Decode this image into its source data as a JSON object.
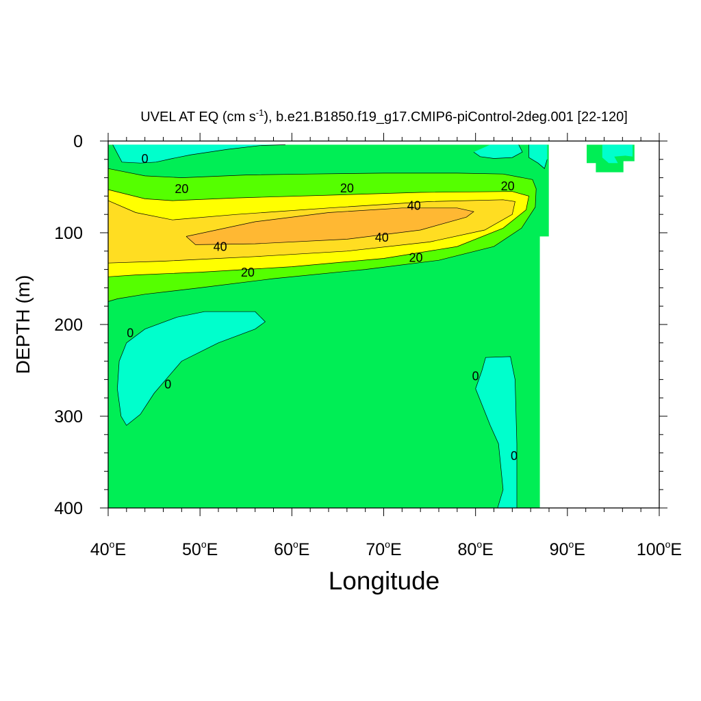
{
  "chart_data": {
    "type": "contour",
    "title_main": "UVEL AT EQ (cm s",
    "title_sup": "-1",
    "title_rest": "), b.e21.B1850.f19_g17.CMIP6-piControl-2deg.001 [22-120]",
    "xlabel": "Longitude",
    "ylabel": "DEPTH (m)",
    "xlim": [
      40,
      100
    ],
    "ylim": [
      0,
      400
    ],
    "x_ticks": [
      40,
      50,
      60,
      70,
      80,
      90,
      100
    ],
    "x_tick_labels": [
      {
        "num": "40",
        "deg": "o",
        "dir": "E"
      },
      {
        "num": "50",
        "deg": "o",
        "dir": "E"
      },
      {
        "num": "60",
        "deg": "o",
        "dir": "E"
      },
      {
        "num": "70",
        "deg": "o",
        "dir": "E"
      },
      {
        "num": "80",
        "deg": "o",
        "dir": "E"
      },
      {
        "num": "90",
        "deg": "o",
        "dir": "E"
      },
      {
        "num": "100",
        "deg": "o",
        "dir": "E"
      }
    ],
    "y_ticks": [
      0,
      100,
      200,
      300,
      400
    ],
    "y_tick_labels": [
      "0",
      "100",
      "200",
      "300",
      "400"
    ],
    "colors": {
      "cyan": "#00ffcc",
      "green": "#00ee55",
      "lime": "#55ff00",
      "yellow": "#ffff00",
      "gold": "#ffdd22",
      "orange": "#ffb833"
    },
    "contour_labels": [
      {
        "text": "0",
        "lon": 44.0,
        "depth": 19
      },
      {
        "text": "20",
        "lon": 48.0,
        "depth": 52
      },
      {
        "text": "20",
        "lon": 66.0,
        "depth": 51
      },
      {
        "text": "20",
        "lon": 83.5,
        "depth": 49
      },
      {
        "text": "40",
        "lon": 73.3,
        "depth": 70
      },
      {
        "text": "40",
        "lon": 69.8,
        "depth": 105
      },
      {
        "text": "40",
        "lon": 52.2,
        "depth": 115
      },
      {
        "text": "20",
        "lon": 73.5,
        "depth": 127
      },
      {
        "text": "20",
        "lon": 55.2,
        "depth": 143
      },
      {
        "text": "0",
        "lon": 42.4,
        "depth": 209
      },
      {
        "text": "0",
        "lon": 46.5,
        "depth": 265
      },
      {
        "text": "0",
        "lon": 80.0,
        "depth": 256
      },
      {
        "text": "0",
        "lon": 84.2,
        "depth": 343
      }
    ],
    "regions": [
      {
        "fill": "green",
        "pts": [
          [
            40,
            4
          ],
          [
            87.98,
            4
          ],
          [
            87.98,
            104
          ],
          [
            87,
            104
          ],
          [
            87,
            400
          ],
          [
            40,
            400
          ]
        ]
      },
      {
        "fill": "green",
        "pts": [
          [
            92.1,
            4
          ],
          [
            97.3,
            4
          ],
          [
            97.3,
            22
          ],
          [
            96.1,
            22
          ],
          [
            96.1,
            34
          ],
          [
            93.1,
            34
          ],
          [
            93.1,
            24
          ],
          [
            92.1,
            24
          ]
        ]
      },
      {
        "fill": "cyan",
        "pts": [
          [
            40.5,
            4
          ],
          [
            59.3,
            4
          ],
          [
            56.5,
            5
          ],
          [
            53,
            9
          ],
          [
            49,
            15
          ],
          [
            47,
            19
          ],
          [
            45.2,
            23
          ],
          [
            43.5,
            24
          ],
          [
            41.5,
            23
          ]
        ]
      },
      {
        "fill": "cyan",
        "pts": [
          [
            81.6,
            4
          ],
          [
            84.7,
            4
          ],
          [
            85.1,
            12
          ],
          [
            84,
            18
          ],
          [
            82,
            19
          ],
          [
            80.5,
            17
          ],
          [
            79.8,
            12
          ]
        ]
      },
      {
        "fill": "cyan",
        "pts": [
          [
            85.8,
            4
          ],
          [
            87.8,
            4
          ],
          [
            87.8,
            20
          ],
          [
            87.5,
            30
          ],
          [
            86.8,
            24
          ],
          [
            85.8,
            18
          ]
        ]
      },
      {
        "fill": "cyan",
        "pts": [
          [
            93.8,
            4
          ],
          [
            97.1,
            4
          ],
          [
            97.1,
            17
          ],
          [
            96.3,
            16
          ],
          [
            95.1,
            17
          ],
          [
            95.5,
            24
          ],
          [
            94.5,
            24
          ],
          [
            93.8,
            18
          ]
        ]
      },
      {
        "fill": "cyan",
        "pts": [
          [
            50.5,
            186
          ],
          [
            56,
            186
          ],
          [
            57.1,
            197
          ],
          [
            56,
            205
          ],
          [
            52,
            220
          ],
          [
            48,
            240
          ],
          [
            45,
            275
          ],
          [
            43.5,
            298
          ],
          [
            42,
            310
          ],
          [
            41.4,
            300
          ],
          [
            41,
            270
          ],
          [
            41.2,
            240
          ],
          [
            42,
            220
          ],
          [
            44,
            205
          ],
          [
            47.5,
            192
          ]
        ]
      },
      {
        "fill": "cyan",
        "pts": [
          [
            81.1,
            236
          ],
          [
            83.8,
            235
          ],
          [
            84.3,
            260
          ],
          [
            84.5,
            330
          ],
          [
            84.5,
            400
          ],
          [
            82.4,
            400
          ],
          [
            83,
            380
          ],
          [
            82.5,
            330
          ],
          [
            81.6,
            310
          ],
          [
            80,
            270
          ],
          [
            80.7,
            250
          ]
        ]
      },
      {
        "fill": "lime",
        "pts": [
          [
            40,
            30
          ],
          [
            44,
            38
          ],
          [
            48,
            40
          ],
          [
            55,
            37
          ],
          [
            62,
            36
          ],
          [
            70,
            35
          ],
          [
            78,
            35
          ],
          [
            83,
            36
          ],
          [
            86.2,
            42
          ],
          [
            86.6,
            52
          ],
          [
            86.5,
            72
          ],
          [
            85,
            95
          ],
          [
            82,
            115
          ],
          [
            76,
            130
          ],
          [
            68,
            140
          ],
          [
            58,
            150
          ],
          [
            50,
            160
          ],
          [
            44,
            167
          ],
          [
            41,
            172
          ],
          [
            40,
            175
          ]
        ]
      },
      {
        "fill": "yellow",
        "pts": [
          [
            40,
            53
          ],
          [
            44,
            63
          ],
          [
            47,
            65
          ],
          [
            54,
            62
          ],
          [
            64,
            59
          ],
          [
            74,
            56
          ],
          [
            84,
            55
          ],
          [
            85.8,
            60
          ],
          [
            85.5,
            75
          ],
          [
            83,
            95
          ],
          [
            78,
            115
          ],
          [
            70,
            128
          ],
          [
            60,
            137
          ],
          [
            50,
            143
          ],
          [
            43,
            146
          ],
          [
            40,
            148
          ]
        ]
      },
      {
        "fill": "gold",
        "pts": [
          [
            40,
            65
          ],
          [
            43,
            78
          ],
          [
            47,
            86
          ],
          [
            54,
            80
          ],
          [
            64,
            73
          ],
          [
            75,
            66
          ],
          [
            83,
            64
          ],
          [
            84.3,
            66
          ],
          [
            84,
            80
          ],
          [
            81,
            97
          ],
          [
            75,
            110
          ],
          [
            66,
            120
          ],
          [
            56,
            126
          ],
          [
            46,
            131
          ],
          [
            40,
            133
          ]
        ]
      },
      {
        "fill": "orange",
        "pts": [
          [
            48.5,
            104
          ],
          [
            56,
            88
          ],
          [
            64,
            78
          ],
          [
            72,
            73
          ],
          [
            78,
            73
          ],
          [
            79.8,
            77
          ],
          [
            79,
            83
          ],
          [
            74,
            97
          ],
          [
            66,
            107
          ],
          [
            56,
            112
          ],
          [
            49.5,
            113
          ]
        ]
      }
    ],
    "contour_lines": [
      [
        [
          40,
          30
        ],
        [
          44,
          38
        ],
        [
          48,
          40
        ],
        [
          55,
          37
        ],
        [
          62,
          36
        ],
        [
          70,
          35
        ],
        [
          78,
          35
        ],
        [
          83,
          36
        ],
        [
          86.2,
          42
        ],
        [
          86.6,
          52
        ],
        [
          86.5,
          72
        ],
        [
          85,
          95
        ],
        [
          82,
          115
        ],
        [
          76,
          130
        ],
        [
          68,
          140
        ],
        [
          58,
          150
        ],
        [
          50,
          160
        ],
        [
          44,
          167
        ],
        [
          41,
          172
        ],
        [
          40,
          175
        ]
      ],
      [
        [
          40,
          53
        ],
        [
          44,
          63
        ],
        [
          47,
          65
        ],
        [
          54,
          62
        ],
        [
          64,
          59
        ],
        [
          74,
          56
        ],
        [
          84,
          55
        ],
        [
          85.8,
          60
        ],
        [
          85.5,
          75
        ],
        [
          83,
          95
        ],
        [
          78,
          115
        ],
        [
          70,
          128
        ],
        [
          60,
          137
        ],
        [
          50,
          143
        ],
        [
          43,
          146
        ],
        [
          40,
          148
        ]
      ],
      [
        [
          40,
          65
        ],
        [
          43,
          78
        ],
        [
          47,
          86
        ],
        [
          54,
          80
        ],
        [
          64,
          73
        ],
        [
          75,
          66
        ],
        [
          83,
          64
        ],
        [
          84.3,
          66
        ],
        [
          84,
          80
        ],
        [
          81,
          97
        ],
        [
          75,
          110
        ],
        [
          66,
          120
        ],
        [
          56,
          126
        ],
        [
          46,
          131
        ],
        [
          40,
          133
        ]
      ],
      [
        [
          48.5,
          104
        ],
        [
          56,
          88
        ],
        [
          64,
          78
        ],
        [
          72,
          73
        ],
        [
          78,
          73
        ],
        [
          79.8,
          77
        ],
        [
          79,
          83
        ],
        [
          74,
          97
        ],
        [
          66,
          107
        ],
        [
          56,
          112
        ],
        [
          49.5,
          113
        ],
        [
          48.5,
          104
        ]
      ],
      [
        [
          40.5,
          4
        ],
        [
          41.5,
          23
        ],
        [
          43.5,
          24
        ],
        [
          45.2,
          23
        ],
        [
          47,
          19
        ],
        [
          49,
          15
        ],
        [
          53,
          9
        ],
        [
          56.5,
          5
        ],
        [
          59.3,
          4
        ]
      ],
      [
        [
          79.8,
          12
        ],
        [
          80.5,
          17
        ],
        [
          82,
          19
        ],
        [
          84,
          18
        ],
        [
          85.1,
          12
        ],
        [
          84.7,
          4
        ]
      ],
      [
        [
          85.8,
          4
        ],
        [
          85.8,
          18
        ],
        [
          86.8,
          24
        ],
        [
          87.5,
          30
        ],
        [
          87.8,
          20
        ]
      ],
      [
        [
          50.5,
          186
        ],
        [
          56,
          186
        ],
        [
          57.1,
          197
        ],
        [
          56,
          205
        ],
        [
          52,
          220
        ],
        [
          48,
          240
        ],
        [
          45,
          275
        ],
        [
          43.5,
          298
        ],
        [
          42,
          310
        ],
        [
          41.4,
          300
        ],
        [
          41,
          270
        ],
        [
          41.2,
          240
        ],
        [
          42,
          220
        ],
        [
          44,
          205
        ],
        [
          47.5,
          192
        ],
        [
          50.5,
          186
        ]
      ],
      [
        [
          82.4,
          400
        ],
        [
          83,
          380
        ],
        [
          82.5,
          330
        ],
        [
          81.6,
          310
        ],
        [
          80,
          270
        ],
        [
          80.7,
          250
        ],
        [
          81.1,
          236
        ],
        [
          83.8,
          235
        ],
        [
          84.3,
          260
        ],
        [
          84.5,
          330
        ],
        [
          84.5,
          400
        ]
      ]
    ],
    "grid": false
  }
}
